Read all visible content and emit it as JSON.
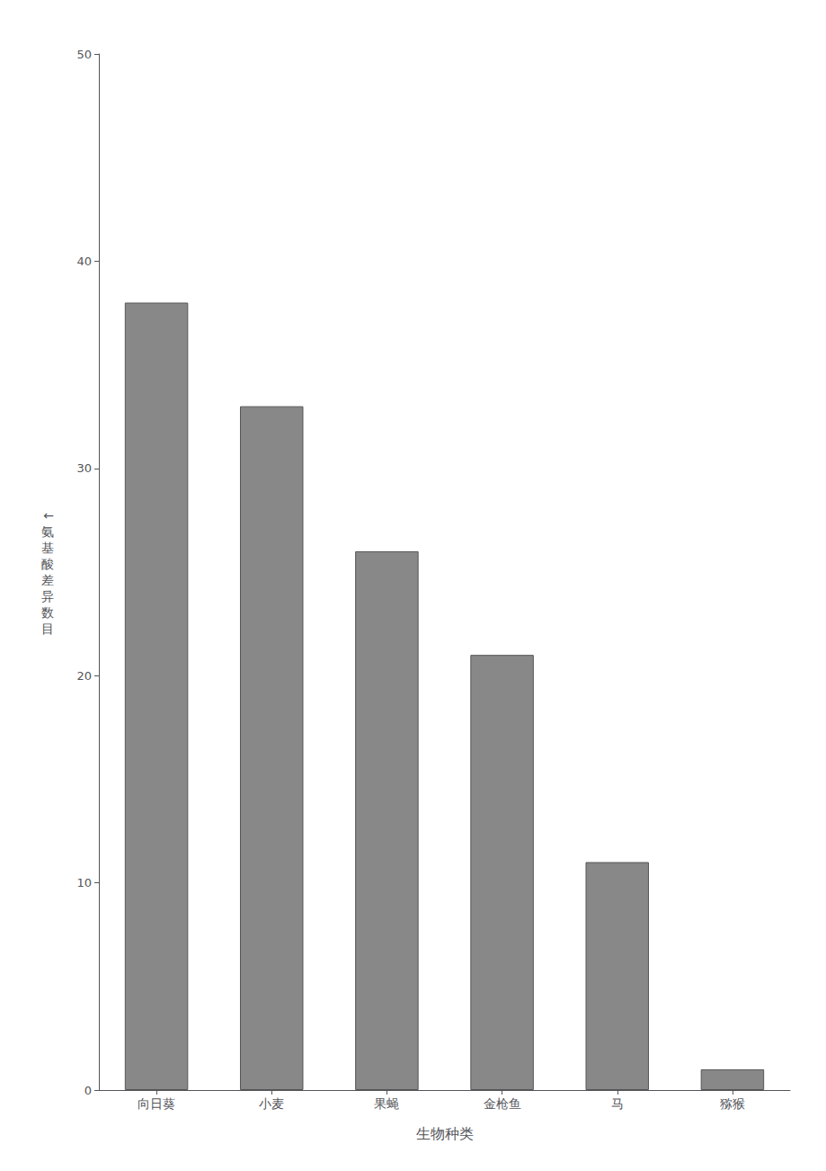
{
  "chart_data": {
    "type": "bar",
    "categories": [
      "向日葵",
      "小麦",
      "果蝇",
      "金枪鱼",
      "马",
      "猕猴"
    ],
    "values": [
      38,
      33,
      26,
      21,
      11,
      1
    ],
    "color": "#888888",
    "xlabel": "生物种类",
    "ylabel": "←\n氨\n基\n酸\n差\n异\n数\n目",
    "ylim": [
      0,
      50
    ],
    "yticks": [
      0,
      10,
      20,
      30,
      40,
      50
    ],
    "grid": false
  }
}
